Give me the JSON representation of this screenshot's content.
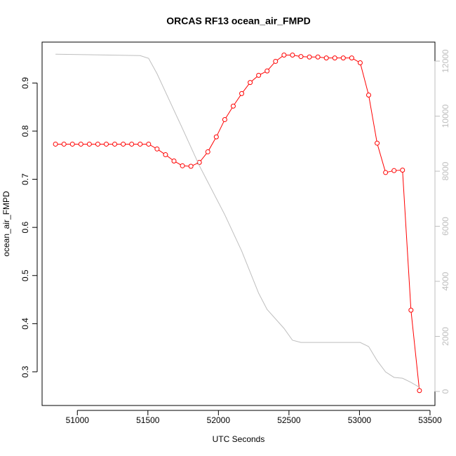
{
  "chart_data": {
    "type": "line",
    "title": "ORCAS RF13 ocean_air_FMPD",
    "x_label": "UTC Seconds",
    "y_label": "ocean_air_FMPD",
    "xlim": [
      50750,
      53535
    ],
    "xticks": [
      51000,
      51500,
      52000,
      52500,
      53000,
      53500
    ],
    "ylim": [
      0.23,
      0.985
    ],
    "yticks": [
      0.3,
      0.4,
      0.5,
      0.6,
      0.7,
      0.8,
      0.9
    ],
    "y2lim": [
      -510,
      12690
    ],
    "y2ticks": [
      0,
      2000,
      4000,
      6000,
      8000,
      10000,
      12000
    ],
    "y2_color": "#bebebe",
    "series": [
      {
        "color": "#ff0000",
        "markers": true,
        "x": [
          50845,
          50905,
          50965,
          51025,
          51085,
          51145,
          51205,
          51265,
          51325,
          51385,
          51445,
          51505,
          51565,
          51625,
          51685,
          51745,
          51805,
          51865,
          51925,
          51985,
          52045,
          52105,
          52165,
          52225,
          52285,
          52345,
          52405,
          52465,
          52525,
          52585,
          52645,
          52705,
          52765,
          52825,
          52885,
          52945,
          53005,
          53065,
          53125,
          53185,
          53245,
          53305,
          53365,
          53425
        ],
        "values": [
          0.773,
          0.773,
          0.773,
          0.773,
          0.773,
          0.773,
          0.773,
          0.773,
          0.773,
          0.773,
          0.773,
          0.773,
          0.763,
          0.751,
          0.738,
          0.728,
          0.727,
          0.735,
          0.757,
          0.788,
          0.824,
          0.852,
          0.878,
          0.901,
          0.916,
          0.925,
          0.945,
          0.958,
          0.958,
          0.955,
          0.954,
          0.954,
          0.952,
          0.952,
          0.952,
          0.952,
          0.942,
          0.875,
          0.775,
          0.714,
          0.718,
          0.719,
          0.428,
          0.261
        ]
      },
      {
        "color": "#bebebe",
        "markers": false,
        "axis": "y2",
        "x": [
          50845,
          51445,
          51505,
          51565,
          51745,
          51865,
          52045,
          52165,
          52285,
          52345,
          52465,
          52525,
          52585,
          53005,
          53065,
          53125,
          53185,
          53245,
          53305,
          53365,
          53425
        ],
        "values": [
          12250,
          12200,
          12100,
          11540,
          9550,
          8200,
          6420,
          5100,
          3570,
          2980,
          2290,
          1860,
          1780,
          1780,
          1630,
          1120,
          710,
          510,
          480,
          330,
          150
        ]
      }
    ]
  }
}
